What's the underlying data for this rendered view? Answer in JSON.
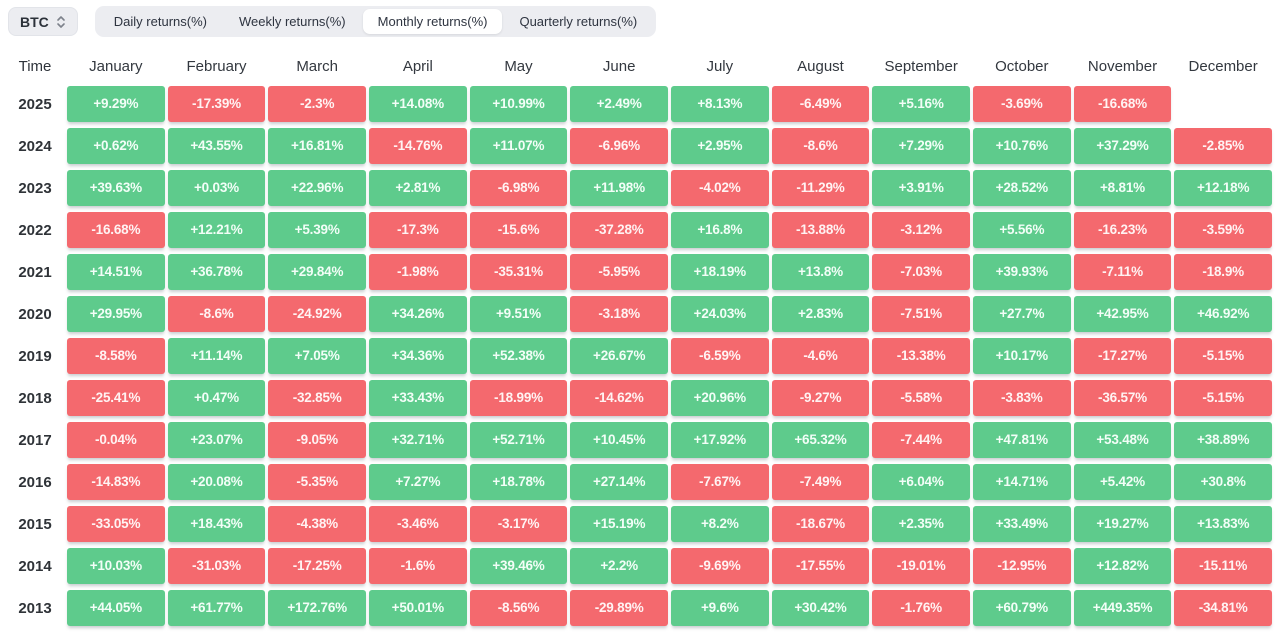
{
  "controls": {
    "symbol_select": {
      "value": "BTC",
      "icon": "up-down-chevron-icon"
    },
    "tabs": [
      {
        "label": "Daily returns(%)",
        "active": false
      },
      {
        "label": "Weekly returns(%)",
        "active": false
      },
      {
        "label": "Monthly returns(%)",
        "active": true
      },
      {
        "label": "Quarterly returns(%)",
        "active": false
      }
    ]
  },
  "table": {
    "time_header": "Time",
    "months": [
      "January",
      "February",
      "March",
      "April",
      "May",
      "June",
      "July",
      "August",
      "September",
      "October",
      "November",
      "December"
    ],
    "rows": [
      {
        "year": "2025",
        "values": [
          "+9.29%",
          "-17.39%",
          "-2.3%",
          "+14.08%",
          "+10.99%",
          "+2.49%",
          "+8.13%",
          "-6.49%",
          "+5.16%",
          "-3.69%",
          "-16.68%",
          ""
        ]
      },
      {
        "year": "2024",
        "values": [
          "+0.62%",
          "+43.55%",
          "+16.81%",
          "-14.76%",
          "+11.07%",
          "-6.96%",
          "+2.95%",
          "-8.6%",
          "+7.29%",
          "+10.76%",
          "+37.29%",
          "-2.85%"
        ]
      },
      {
        "year": "2023",
        "values": [
          "+39.63%",
          "+0.03%",
          "+22.96%",
          "+2.81%",
          "-6.98%",
          "+11.98%",
          "-4.02%",
          "-11.29%",
          "+3.91%",
          "+28.52%",
          "+8.81%",
          "+12.18%"
        ]
      },
      {
        "year": "2022",
        "values": [
          "-16.68%",
          "+12.21%",
          "+5.39%",
          "-17.3%",
          "-15.6%",
          "-37.28%",
          "+16.8%",
          "-13.88%",
          "-3.12%",
          "+5.56%",
          "-16.23%",
          "-3.59%"
        ]
      },
      {
        "year": "2021",
        "values": [
          "+14.51%",
          "+36.78%",
          "+29.84%",
          "-1.98%",
          "-35.31%",
          "-5.95%",
          "+18.19%",
          "+13.8%",
          "-7.03%",
          "+39.93%",
          "-7.11%",
          "-18.9%"
        ]
      },
      {
        "year": "2020",
        "values": [
          "+29.95%",
          "-8.6%",
          "-24.92%",
          "+34.26%",
          "+9.51%",
          "-3.18%",
          "+24.03%",
          "+2.83%",
          "-7.51%",
          "+27.7%",
          "+42.95%",
          "+46.92%"
        ]
      },
      {
        "year": "2019",
        "values": [
          "-8.58%",
          "+11.14%",
          "+7.05%",
          "+34.36%",
          "+52.38%",
          "+26.67%",
          "-6.59%",
          "-4.6%",
          "-13.38%",
          "+10.17%",
          "-17.27%",
          "-5.15%"
        ]
      },
      {
        "year": "2018",
        "values": [
          "-25.41%",
          "+0.47%",
          "-32.85%",
          "+33.43%",
          "-18.99%",
          "-14.62%",
          "+20.96%",
          "-9.27%",
          "-5.58%",
          "-3.83%",
          "-36.57%",
          "-5.15%"
        ]
      },
      {
        "year": "2017",
        "values": [
          "-0.04%",
          "+23.07%",
          "-9.05%",
          "+32.71%",
          "+52.71%",
          "+10.45%",
          "+17.92%",
          "+65.32%",
          "-7.44%",
          "+47.81%",
          "+53.48%",
          "+38.89%"
        ]
      },
      {
        "year": "2016",
        "values": [
          "-14.83%",
          "+20.08%",
          "-5.35%",
          "+7.27%",
          "+18.78%",
          "+27.14%",
          "-7.67%",
          "-7.49%",
          "+6.04%",
          "+14.71%",
          "+5.42%",
          "+30.8%"
        ]
      },
      {
        "year": "2015",
        "values": [
          "-33.05%",
          "+18.43%",
          "-4.38%",
          "-3.46%",
          "-3.17%",
          "+15.19%",
          "+8.2%",
          "-18.67%",
          "+2.35%",
          "+33.49%",
          "+19.27%",
          "+13.83%"
        ]
      },
      {
        "year": "2014",
        "values": [
          "+10.03%",
          "-31.03%",
          "-17.25%",
          "-1.6%",
          "+39.46%",
          "+2.2%",
          "-9.69%",
          "-17.55%",
          "-19.01%",
          "-12.95%",
          "+12.82%",
          "-15.11%"
        ]
      },
      {
        "year": "2013",
        "values": [
          "+44.05%",
          "+61.77%",
          "+172.76%",
          "+50.01%",
          "-8.56%",
          "-29.89%",
          "+9.6%",
          "+30.42%",
          "-1.76%",
          "+60.79%",
          "+449.35%",
          "-34.81%"
        ]
      }
    ]
  },
  "colors": {
    "positive": "#5ECB8C",
    "negative": "#F4696E"
  }
}
